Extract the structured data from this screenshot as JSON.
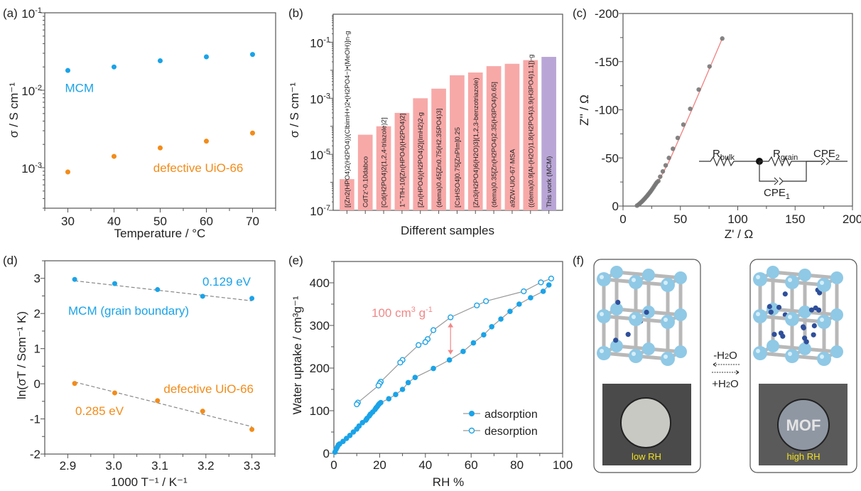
{
  "colors": {
    "mcm": "#1aa3e8",
    "uio": "#f28c1a",
    "bar": "#f7a9a8",
    "bar_this_work": "#b9a6d6",
    "eis_points": "#777777",
    "eis_fit": "#f08080",
    "arrow": "#f08888",
    "dashed": "#888888",
    "iso_line": "#999999"
  },
  "chart_data": [
    {
      "id": "a",
      "panel_label": "(a)",
      "type": "scatter",
      "title": "",
      "xlabel": "Temperature / °C",
      "ylabel": "σ / S cm⁻¹",
      "yscale": "log",
      "xlim": [
        25,
        75
      ],
      "ylim": [
        0.0003,
        0.1
      ],
      "xticks": [
        30,
        40,
        50,
        60,
        70
      ],
      "yticks": [
        {
          "value": 0.1,
          "label": "10",
          "exp": "-1"
        },
        {
          "value": 0.01,
          "label": "10",
          "exp": "-2"
        },
        {
          "value": 0.001,
          "label": "10",
          "exp": "-3"
        }
      ],
      "series": [
        {
          "name": "MCM",
          "color_key": "mcm",
          "x": [
            30,
            40,
            50,
            60,
            70
          ],
          "y": [
            0.018,
            0.02,
            0.024,
            0.027,
            0.029
          ]
        },
        {
          "name": "defective UiO-66",
          "color_key": "uio",
          "x": [
            30,
            40,
            50,
            60,
            70
          ],
          "y": [
            0.00088,
            0.0014,
            0.0018,
            0.0022,
            0.0028
          ]
        }
      ],
      "annotations": [
        {
          "text": "MCM",
          "color_key": "mcm",
          "x": 30,
          "y": 0.0095
        },
        {
          "text": "defective UiO-66",
          "color_key": "uio",
          "x": 48.5,
          "y": 0.00088
        }
      ]
    },
    {
      "id": "b",
      "panel_label": "(b)",
      "type": "bar",
      "xlabel": "Different samples",
      "ylabel": "σ / S cm⁻¹",
      "yscale": "log",
      "ylim": [
        1e-07,
        1
      ],
      "yticks": [
        {
          "value": 0.1,
          "label": "10",
          "exp": "-1"
        },
        {
          "value": 0.001,
          "label": "10",
          "exp": "-3"
        },
        {
          "value": 1e-05,
          "label": "10",
          "exp": "-5"
        },
        {
          "value": 1e-07,
          "label": "10",
          "exp": "-7"
        }
      ],
      "categories": [
        "[(Zn2(HPO4)2(H2PO4))(ClbimH+)2•(H2PO4−)•(MeOH)]n-g",
        "CdTz'-0.10dabco",
        "[Cd(H2PO4)2(1,2,4-triazole)2]",
        "1''-TfH-10[Zn(HPO4)(H2PO4)2]",
        "[Zn(HPO4)(H2PO4)2](ImH2)2-g",
        "(dema)0.45[Zn0.75(H2.35PO4)3]",
        "[CsHSO4]0.75[ZnPIm]0.25",
        "[Zn3(H2PO4)6(H2O)3](1,2,3-benzotriazole)",
        "(dema)0.35[Zn(H2PO4)2.35(H3PO4)0.65]",
        "a9ZW-UiO-67·MSA",
        "((dema)0.9[Al-(H2O)1.8(H2PO4)3.9(H3PO4)1.1])-g",
        "This work (MCM)"
      ],
      "values": [
        1.3e-06,
        5e-05,
        0.0001,
        0.0003,
        0.001,
        0.0022,
        0.0066,
        0.0083,
        0.014,
        0.017,
        0.023,
        0.03
      ],
      "highlight_index": 11
    },
    {
      "id": "c",
      "panel_label": "(c)",
      "type": "scatter",
      "xlabel": "Z' / Ω",
      "ylabel": "Z'' / Ω",
      "xlim": [
        0,
        200
      ],
      "ylim": [
        0,
        -200
      ],
      "xticks": [
        0,
        50,
        100,
        150,
        200
      ],
      "yticks": [
        0,
        -50,
        -100,
        -150,
        -200
      ],
      "series": [
        {
          "name": "measured",
          "color_key": "eis_points",
          "x": [
            12.2,
            13.5,
            14.5,
            15.5,
            16.5,
            17.5,
            18.5,
            19.5,
            20.5,
            21.5,
            22.5,
            23.5,
            24.5,
            25.5,
            26.5,
            27.5,
            28.5,
            29.5,
            30.8,
            32.4,
            34.7,
            37.2,
            40.0,
            43.5,
            47.7,
            52.6,
            58.6,
            66.0,
            75.4,
            86.5
          ],
          "y": [
            -0.5,
            -1.5,
            -2.5,
            -3.6,
            -4.7,
            -5.9,
            -7.2,
            -8.5,
            -9.9,
            -11.3,
            -12.8,
            -14.3,
            -15.9,
            -17.6,
            -19.4,
            -21.2,
            -23.0,
            -24.6,
            -26.0,
            -30.5,
            -36.0,
            -42.3,
            -50.0,
            -59.5,
            -70.8,
            -84.6,
            -101.0,
            -121.0,
            -145.0,
            -174.0
          ]
        }
      ],
      "fit": {
        "name": "fit",
        "color_key": "eis_fit",
        "x": [
          12.2,
          16,
          20,
          24,
          28,
          32,
          40,
          60,
          86.5
        ],
        "y": [
          0,
          -3.5,
          -8,
          -14,
          -20.5,
          -28,
          -46,
          -100,
          -174
        ]
      },
      "inset": {
        "elements": [
          "R",
          "bulk",
          "R",
          "grain",
          "CPE",
          "2",
          "CPE",
          "1"
        ]
      }
    },
    {
      "id": "d",
      "panel_label": "(d)",
      "type": "scatter",
      "xlabel": "1000 T⁻¹ / K⁻¹",
      "ylabel": "ln(σT / Scm⁻¹ K)",
      "xlim": [
        2.85,
        3.35
      ],
      "ylim": [
        -2,
        3.5
      ],
      "xticks": [
        2.9,
        3.0,
        3.1,
        3.2,
        3.3
      ],
      "xticklabels": [
        "2.9",
        "3.0",
        "3.1",
        "3.2",
        "3.3"
      ],
      "yticks": [
        -2,
        -1,
        0,
        1,
        2,
        3
      ],
      "series": [
        {
          "name": "MCM (grain boundary)",
          "color_key": "mcm",
          "x": [
            2.915,
            3.002,
            3.095,
            3.193,
            3.3
          ],
          "y": [
            2.97,
            2.85,
            2.68,
            2.49,
            2.43
          ],
          "fit": {
            "x": [
              2.915,
              3.3
            ],
            "y": [
              2.93,
              2.36
            ]
          },
          "ea": "0.129 eV"
        },
        {
          "name": "defective UiO-66",
          "color_key": "uio",
          "x": [
            2.915,
            3.002,
            3.095,
            3.193,
            3.3
          ],
          "y": [
            0.01,
            -0.26,
            -0.48,
            -0.78,
            -1.3
          ],
          "fit": {
            "x": [
              2.915,
              3.3
            ],
            "y": [
              0.05,
              -1.22
            ]
          },
          "ea": "0.285 eV"
        }
      ]
    },
    {
      "id": "e",
      "panel_label": "(e)",
      "type": "line",
      "xlabel": "RH %",
      "ylabel": "Water uptake / cm³g⁻¹",
      "xlim": [
        0,
        100
      ],
      "ylim": [
        0,
        450
      ],
      "xticks": [
        0,
        20,
        40,
        60,
        80,
        100
      ],
      "yticks": [
        0,
        100,
        200,
        300,
        400
      ],
      "series": [
        {
          "name": "adsorption",
          "marker": "filled",
          "x": [
            0.5,
            1,
            1.5,
            2,
            2.5,
            4,
            5.5,
            7,
            8.5,
            10,
            11,
            12.5,
            14,
            14.5,
            15.5,
            16,
            17,
            18,
            18.5,
            19,
            19.5,
            20,
            20.5,
            24,
            27,
            30,
            32.5,
            35.5,
            43.5,
            50.5,
            56.5,
            61,
            65.5,
            69,
            73,
            77,
            81,
            86,
            91.5,
            94
          ],
          "y": [
            3,
            10,
            15,
            20,
            22,
            28,
            35,
            42,
            50,
            57,
            64,
            72,
            78,
            82,
            88,
            92,
            97,
            103,
            107,
            110,
            114,
            117,
            119,
            128,
            138,
            150,
            166,
            178,
            199,
            219,
            239,
            259,
            278,
            297,
            315,
            333,
            350,
            365,
            380,
            395
          ]
        },
        {
          "name": "desorption",
          "marker": "open",
          "x": [
            95,
            90.5,
            83,
            66.5,
            62.5,
            51,
            43.5,
            41,
            40,
            37,
            30,
            29,
            20.5,
            20,
            19.5,
            10.5,
            10
          ],
          "y": [
            410,
            401,
            380,
            357,
            347,
            319,
            289,
            268,
            261,
            254,
            219,
            213,
            168,
            164,
            159,
            119,
            115
          ]
        }
      ],
      "annotation": {
        "text": "100 cm",
        "sup1": "3",
        "mid": " g",
        "sup2": "-1",
        "arrow_x": 51,
        "arrow_from": 219,
        "arrow_to": 319
      },
      "legend": {
        "position": "bottom-right",
        "items": [
          "adsorption",
          "desorption"
        ]
      }
    }
  ],
  "panel_f": {
    "panel_label": "(f)",
    "left_caption": "low RH",
    "right_caption": "high RH",
    "mof_text": "MOF",
    "arrow_top_label": "-H",
    "arrow_top_sub": "2",
    "arrow_top_tail": "O",
    "arrow_bottom_label": "+H",
    "arrow_bottom_sub": "2",
    "arrow_bottom_tail": "O",
    "water_molecules_low": 6,
    "water_molecules_high": 22
  }
}
